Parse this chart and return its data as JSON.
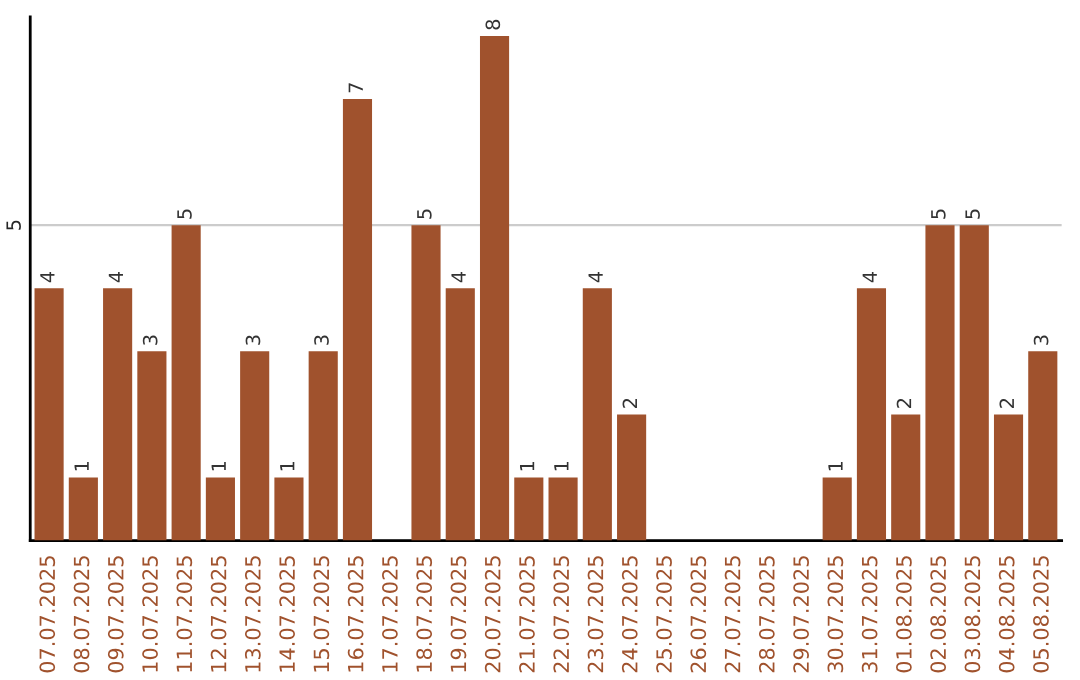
{
  "chart_data": {
    "type": "bar",
    "categories": [
      "07.07.2025",
      "08.07.2025",
      "09.07.2025",
      "10.07.2025",
      "11.07.2025",
      "12.07.2025",
      "13.07.2025",
      "14.07.2025",
      "15.07.2025",
      "16.07.2025",
      "17.07.2025",
      "18.07.2025",
      "19.07.2025",
      "20.07.2025",
      "21.07.2025",
      "22.07.2025",
      "23.07.2025",
      "24.07.2025",
      "25.07.2025",
      "26.07.2025",
      "27.07.2025",
      "28.07.2025",
      "29.07.2025",
      "30.07.2025",
      "31.07.2025",
      "01.08.2025",
      "02.08.2025",
      "03.08.2025",
      "04.08.2025",
      "05.08.2025"
    ],
    "values": [
      4,
      1,
      4,
      3,
      5,
      1,
      3,
      1,
      3,
      7,
      0,
      5,
      4,
      8,
      1,
      1,
      4,
      2,
      0,
      0,
      0,
      0,
      0,
      1,
      4,
      2,
      5,
      5,
      2,
      3
    ],
    "value_labels": [
      "4",
      "1",
      "4",
      "3",
      "5",
      "1",
      "3",
      "1",
      "3",
      "7",
      null,
      "5",
      "4",
      "8",
      "1",
      "1",
      "4",
      "2",
      null,
      null,
      null,
      null,
      null,
      "1",
      "4",
      "2",
      "5",
      "5",
      "2",
      "3"
    ],
    "color": "#a0522d",
    "ylim": [
      0,
      8.3
    ],
    "yticks": [
      0,
      5
    ],
    "grid": "y"
  }
}
